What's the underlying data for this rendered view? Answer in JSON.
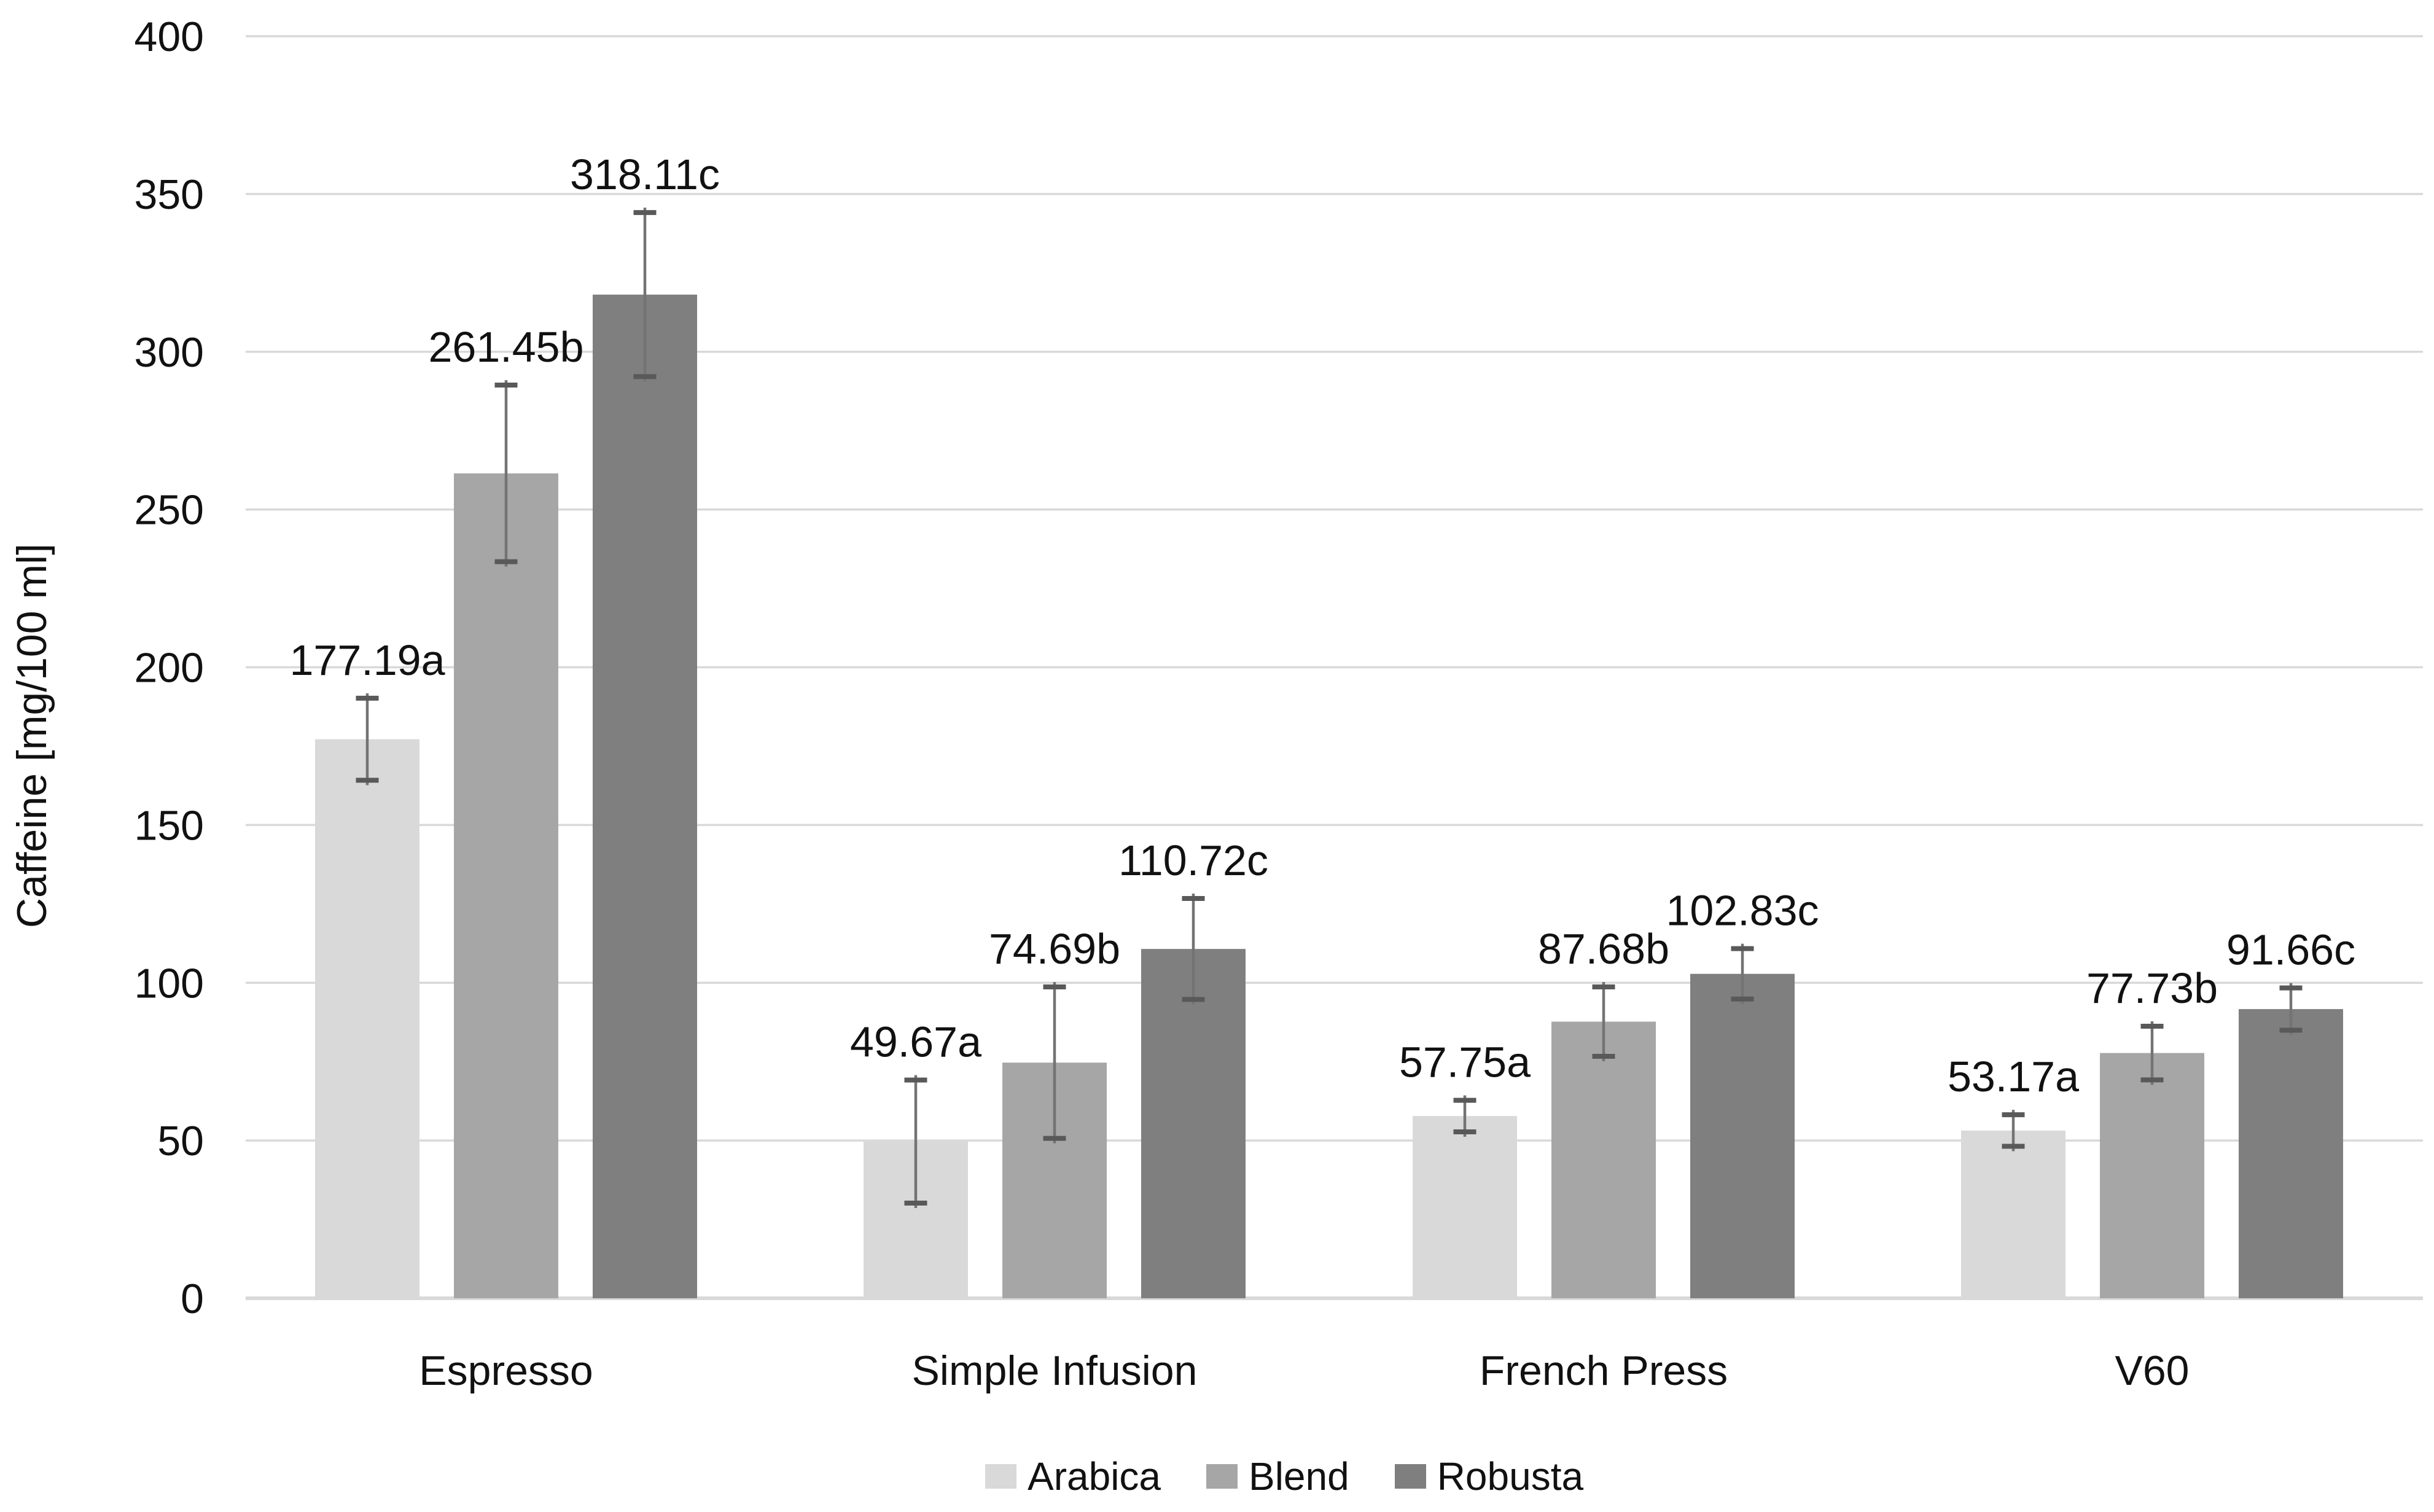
{
  "chart_data": {
    "type": "bar",
    "title": "",
    "xlabel": "",
    "ylabel": "Caffeine [mg/100 ml]",
    "ylim": [
      0,
      400
    ],
    "ytick_step": 50,
    "ytick_labels": [
      "0",
      "50",
      "100",
      "150",
      "200",
      "250",
      "300",
      "350",
      "400"
    ],
    "grid": true,
    "legend_position": "bottom",
    "categories": [
      "Espresso",
      "Simple Infusion",
      "French Press",
      "V60"
    ],
    "series": [
      {
        "name": "Arabica",
        "color": "#d9d9d9",
        "values": [
          177.19,
          49.67,
          57.75,
          53.17
        ],
        "errors": [
          13,
          19.5,
          5,
          5
        ],
        "point_labels": [
          "177.19a",
          "49.67a",
          "57.75a",
          "53.17a"
        ]
      },
      {
        "name": "Blend",
        "color": "#a6a6a6",
        "values": [
          261.45,
          74.69,
          87.68,
          77.73
        ],
        "errors": [
          28,
          24,
          11,
          8.5
        ],
        "point_labels": [
          "261.45b",
          "74.69b",
          "87.68b",
          "77.73b"
        ]
      },
      {
        "name": "Robusta",
        "color": "#7f7f7f",
        "values": [
          318.11,
          110.72,
          102.83,
          91.66
        ],
        "errors": [
          26,
          16,
          8,
          6.7
        ],
        "point_labels": [
          "318.11c",
          "110.72c",
          "102.83c",
          "91.66c"
        ]
      }
    ],
    "style": {
      "background": "#ffffff",
      "gridline_color": "#d9d9d9",
      "axis_line_color": "#d9d9d9",
      "error_bar_line_color": "#737373",
      "error_bar_cap_color": "#595959",
      "text_color": "#111111"
    }
  }
}
